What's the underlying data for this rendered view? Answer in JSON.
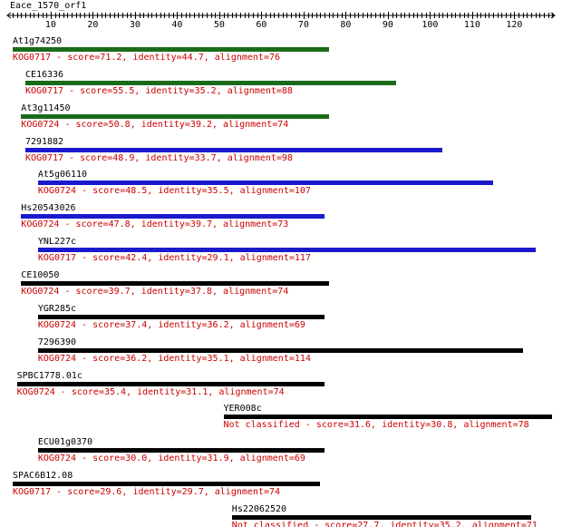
{
  "query": "Eace_1570_orf1",
  "axis": {
    "min": 1,
    "max": 129,
    "tick_labels": [
      10,
      20,
      30,
      40,
      50,
      60,
      70,
      80,
      90,
      100,
      110,
      120
    ]
  },
  "colors": {
    "green": "#1a6b1a",
    "blue": "#1a1acc",
    "black": "#000000",
    "text_red": "#cc0000"
  },
  "hits": [
    {
      "name": "At1g74250",
      "start": 1,
      "end": 76,
      "color": "green",
      "desc": "KOG0717 - score=71.2, identity=44.7, alignment=76"
    },
    {
      "name": "CE16336",
      "start": 4,
      "end": 92,
      "color": "green",
      "desc": "KOG0717 - score=55.5, identity=35.2, alignment=88"
    },
    {
      "name": "At3g11450",
      "start": 3,
      "end": 76,
      "color": "green",
      "desc": "KOG0724 - score=50.8, identity=39.2, alignment=74"
    },
    {
      "name": "7291882",
      "start": 4,
      "end": 103,
      "color": "blue",
      "desc": "KOG0717 - score=48.9, identity=33.7, alignment=98"
    },
    {
      "name": "At5g06110",
      "start": 7,
      "end": 115,
      "color": "blue",
      "desc": "KOG0724 - score=48.5, identity=35.5, alignment=107"
    },
    {
      "name": "Hs20543026",
      "start": 3,
      "end": 75,
      "color": "blue",
      "desc": "KOG0724 - score=47.8, identity=39.7, alignment=73"
    },
    {
      "name": "YNL227c",
      "start": 7,
      "end": 125,
      "color": "blue",
      "desc": "KOG0717 - score=42.4, identity=29.1, alignment=117"
    },
    {
      "name": "CE10050",
      "start": 3,
      "end": 76,
      "color": "black",
      "desc": "KOG0724 - score=39.7, identity=37.8, alignment=74"
    },
    {
      "name": "YGR285c",
      "start": 7,
      "end": 75,
      "color": "black",
      "desc": "KOG0724 - score=37.4, identity=36.2, alignment=69"
    },
    {
      "name": "7296390",
      "start": 7,
      "end": 122,
      "color": "black",
      "desc": "KOG0724 - score=36.2, identity=35.1, alignment=114"
    },
    {
      "name": "SPBC1778.01c",
      "start": 2,
      "end": 75,
      "color": "black",
      "desc": "KOG0724 - score=35.4, identity=31.1, alignment=74"
    },
    {
      "name": "YER008c",
      "start": 51,
      "end": 129,
      "color": "black",
      "desc": "Not classified - score=31.6, identity=30.8, alignment=78"
    },
    {
      "name": "ECU01g0370",
      "start": 7,
      "end": 75,
      "color": "black",
      "desc": "KOG0724 - score=30.0, identity=31.9, alignment=69"
    },
    {
      "name": "SPAC6B12.08",
      "start": 1,
      "end": 74,
      "color": "black",
      "desc": "KOG0717 - score=29.6, identity=29.7, alignment=74"
    },
    {
      "name": "Hs22062520",
      "start": 53,
      "end": 124,
      "color": "black",
      "desc": "Not classified - score=27.7, identity=35.2, alignment=71"
    }
  ]
}
